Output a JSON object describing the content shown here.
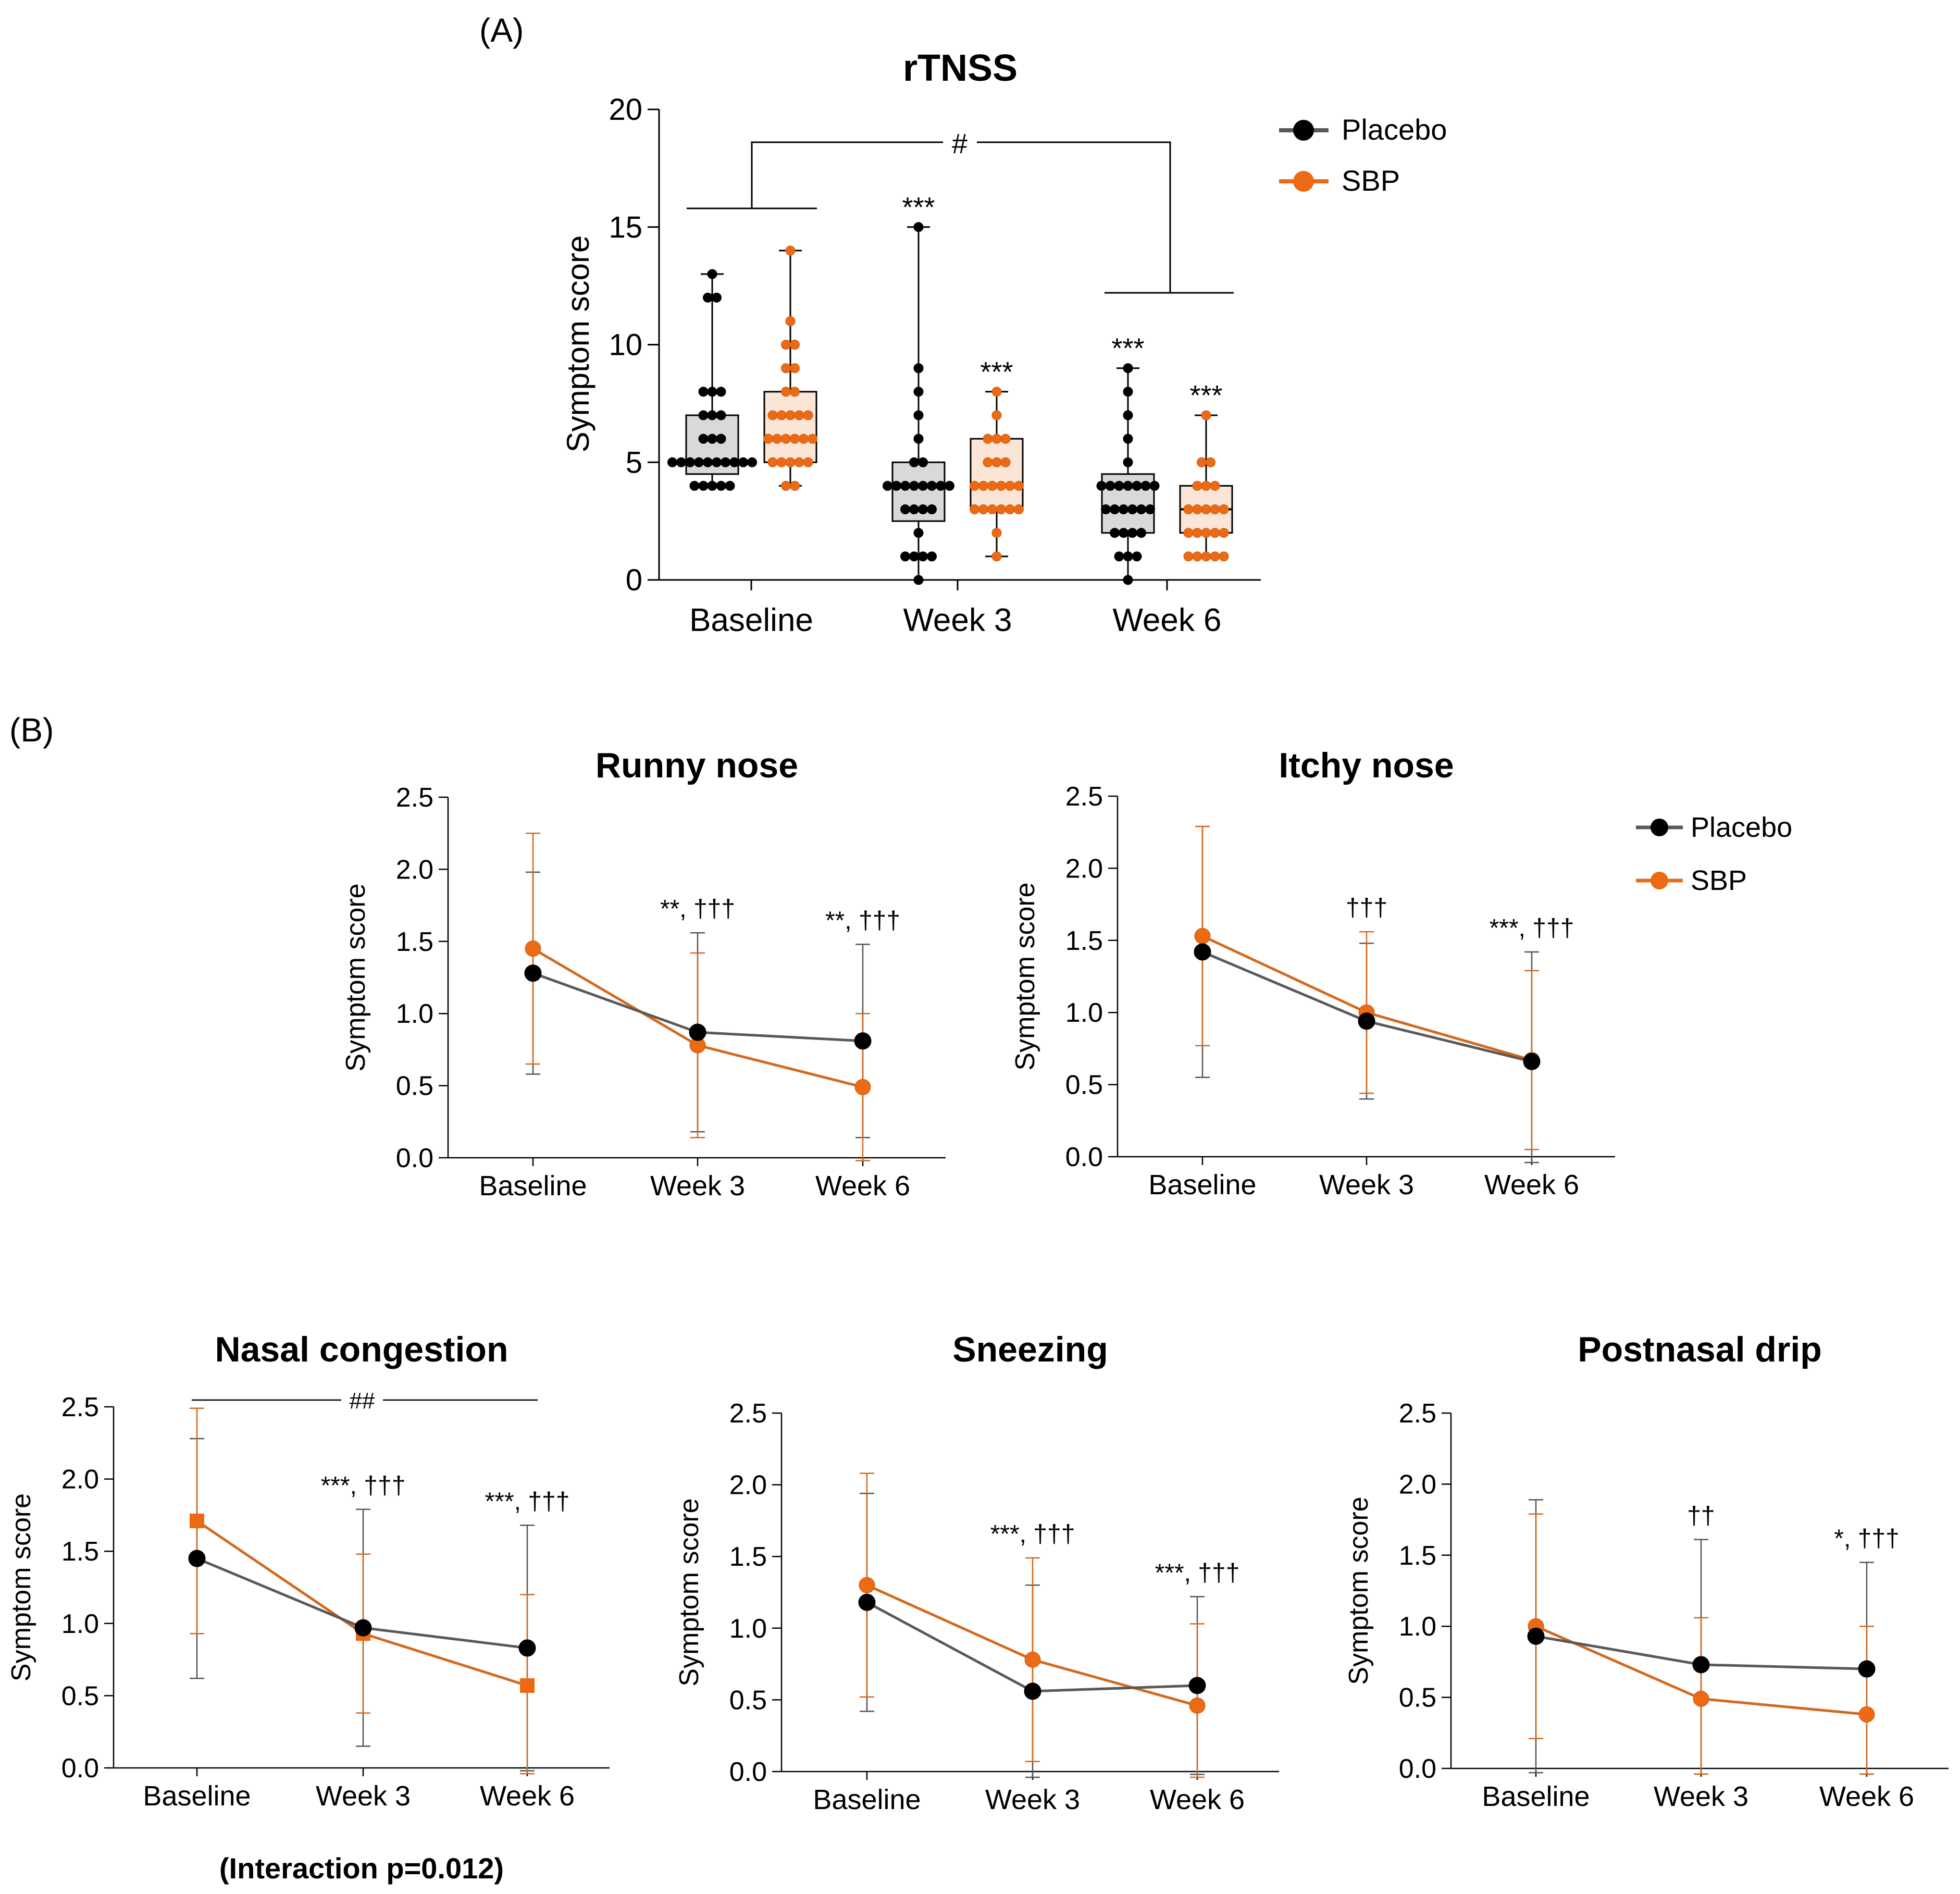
{
  "panel_labels": {
    "a": "(A)",
    "b": "(B)"
  },
  "colors": {
    "placebo": "#000000",
    "placebo_line": "#595959",
    "sbp": "#ED6A15",
    "sbp_line": "#D2691E",
    "placebo_box": "#D9D9D9",
    "sbp_box": "#FBE5D6"
  },
  "legend_a": {
    "placebo": "Placebo",
    "sbp": "SBP"
  },
  "legend_b": {
    "placebo": "Placebo",
    "sbp": "SBP"
  },
  "interaction_note": "(Interaction p=0.012)",
  "chart_data": [
    {
      "id": "rtnss",
      "type": "box",
      "title": "rTNSS",
      "ylabel": "Symptom score",
      "ylim": [
        0,
        20
      ],
      "yticks": [
        "0",
        "5",
        "10",
        "15",
        "20"
      ],
      "categories": [
        "Baseline",
        "Week 3",
        "Week 6"
      ],
      "series": [
        {
          "name": "Placebo",
          "boxes": [
            {
              "min": 4,
              "q1": 4.5,
              "median": 5,
              "q3": 7,
              "max": 13,
              "points": [
                4,
                4,
                4,
                4,
                4,
                5,
                5,
                5,
                5,
                5,
                5,
                5,
                5,
                5,
                5,
                6,
                6,
                6,
                7,
                7,
                7,
                8,
                8,
                8,
                12,
                12,
                13
              ]
            },
            {
              "min": 0,
              "q1": 2.5,
              "median": 4,
              "q3": 5,
              "max": 15,
              "points": [
                0,
                1,
                1,
                1,
                1,
                2,
                3,
                3,
                3,
                3,
                4,
                4,
                4,
                4,
                4,
                4,
                4,
                4,
                5,
                5,
                6,
                7,
                8,
                9,
                15
              ]
            },
            {
              "min": 0,
              "q1": 2,
              "median": 4,
              "q3": 4.5,
              "max": 9,
              "points": [
                0,
                1,
                1,
                1,
                2,
                2,
                2,
                2,
                3,
                3,
                3,
                3,
                3,
                3,
                4,
                4,
                4,
                4,
                4,
                4,
                4,
                5,
                6,
                7,
                8,
                9
              ]
            }
          ]
        },
        {
          "name": "SBP",
          "boxes": [
            {
              "min": 4,
              "q1": 5,
              "median": 6,
              "q3": 8,
              "max": 14,
              "points": [
                4,
                4,
                5,
                5,
                5,
                5,
                5,
                6,
                6,
                6,
                6,
                6,
                6,
                7,
                7,
                7,
                7,
                7,
                8,
                8,
                9,
                9,
                10,
                10,
                11,
                14
              ]
            },
            {
              "min": 1,
              "q1": 3,
              "median": 4,
              "q3": 6,
              "max": 8,
              "points": [
                1,
                2,
                3,
                3,
                3,
                3,
                3,
                3,
                4,
                4,
                4,
                4,
                4,
                4,
                5,
                5,
                5,
                6,
                6,
                6,
                7,
                8
              ]
            },
            {
              "min": 1,
              "q1": 2,
              "median": 3,
              "q3": 4,
              "max": 7,
              "points": [
                1,
                1,
                1,
                1,
                1,
                2,
                2,
                2,
                2,
                2,
                3,
                3,
                3,
                3,
                3,
                4,
                4,
                4,
                5,
                5,
                7
              ]
            }
          ]
        }
      ],
      "annotations": {
        "placebo": [
          "",
          "***",
          "***"
        ],
        "sbp": [
          "",
          "***",
          ""
        ],
        "sbp_w6": "***",
        "bracket": "#"
      }
    },
    {
      "id": "runny",
      "type": "line",
      "title": "Runny nose",
      "ylabel": "Symptom score",
      "ylim": [
        0,
        2.5
      ],
      "yticks": [
        "0.0",
        "0.5",
        "1.0",
        "1.5",
        "2.0",
        "2.5"
      ],
      "categories": [
        "Baseline",
        "Week 3",
        "Week 6"
      ],
      "series": [
        {
          "name": "Placebo",
          "values": [
            1.28,
            0.87,
            0.81
          ],
          "sd": [
            0.7,
            0.69,
            0.67
          ],
          "marker": "circle"
        },
        {
          "name": "SBP",
          "values": [
            1.45,
            0.78,
            0.49
          ],
          "sd": [
            0.8,
            0.64,
            0.51
          ],
          "marker": "circle"
        }
      ],
      "annotations": [
        "",
        "**, †††",
        "**, †††"
      ]
    },
    {
      "id": "itchy",
      "type": "line",
      "title": "Itchy nose",
      "ylabel": "Symptom score",
      "ylim": [
        0,
        2.5
      ],
      "yticks": [
        "0.0",
        "0.5",
        "1.0",
        "1.5",
        "2.0",
        "2.5"
      ],
      "categories": [
        "Baseline",
        "Week 3",
        "Week 6"
      ],
      "series": [
        {
          "name": "Placebo",
          "values": [
            1.42,
            0.94,
            0.66
          ],
          "sd": [
            0.87,
            0.54,
            0.76
          ],
          "marker": "circle"
        },
        {
          "name": "SBP",
          "values": [
            1.53,
            1.0,
            0.67
          ],
          "sd": [
            0.76,
            0.56,
            0.62
          ],
          "marker": "circle"
        }
      ],
      "annotations": [
        "",
        "†††",
        "***, †††"
      ]
    },
    {
      "id": "congestion",
      "type": "line",
      "title": "Nasal congestion",
      "ylabel": "Symptom score",
      "ylim": [
        0,
        2.5
      ],
      "yticks": [
        "0.0",
        "0.5",
        "1.0",
        "1.5",
        "2.0",
        "2.5"
      ],
      "categories": [
        "Baseline",
        "Week 3",
        "Week 6"
      ],
      "series": [
        {
          "name": "Placebo",
          "values": [
            1.45,
            0.97,
            0.83
          ],
          "sd": [
            0.83,
            0.82,
            0.85
          ],
          "marker": "circle"
        },
        {
          "name": "SBP",
          "values": [
            1.71,
            0.93,
            0.57
          ],
          "sd": [
            0.78,
            0.55,
            0.63
          ],
          "marker": "square"
        }
      ],
      "annotations": [
        "",
        "***, †††",
        "***, †††"
      ],
      "bracket": "##"
    },
    {
      "id": "sneezing",
      "type": "line",
      "title": "Sneezing",
      "ylabel": "Symptom score",
      "ylim": [
        0,
        2.5
      ],
      "yticks": [
        "0.0",
        "0.5",
        "1.0",
        "1.5",
        "2.0",
        "2.5"
      ],
      "categories": [
        "Baseline",
        "Week 3",
        "Week 6"
      ],
      "series": [
        {
          "name": "Placebo",
          "values": [
            1.18,
            0.56,
            0.6
          ],
          "sd": [
            0.76,
            0.74,
            0.62
          ],
          "marker": "circle"
        },
        {
          "name": "SBP",
          "values": [
            1.3,
            0.78,
            0.46
          ],
          "sd": [
            0.78,
            0.71,
            0.57
          ],
          "marker": "circle"
        }
      ],
      "annotations": [
        "",
        "***, †††",
        "***, †††"
      ]
    },
    {
      "id": "postnasal",
      "type": "line",
      "title": "Postnasal drip",
      "ylabel": "Symptom score",
      "ylim": [
        0,
        2.5
      ],
      "yticks": [
        "0.0",
        "0.5",
        "1.0",
        "1.5",
        "2.0",
        "2.5"
      ],
      "categories": [
        "Baseline",
        "Week 3",
        "Week 6"
      ],
      "series": [
        {
          "name": "Placebo",
          "values": [
            0.93,
            0.73,
            0.7
          ],
          "sd": [
            0.96,
            0.88,
            0.75
          ],
          "marker": "circle"
        },
        {
          "name": "SBP",
          "values": [
            1.0,
            0.49,
            0.38
          ],
          "sd": [
            0.79,
            0.57,
            0.62
          ],
          "marker": "circle"
        }
      ],
      "annotations": [
        "",
        "††",
        "*, †††"
      ]
    }
  ]
}
